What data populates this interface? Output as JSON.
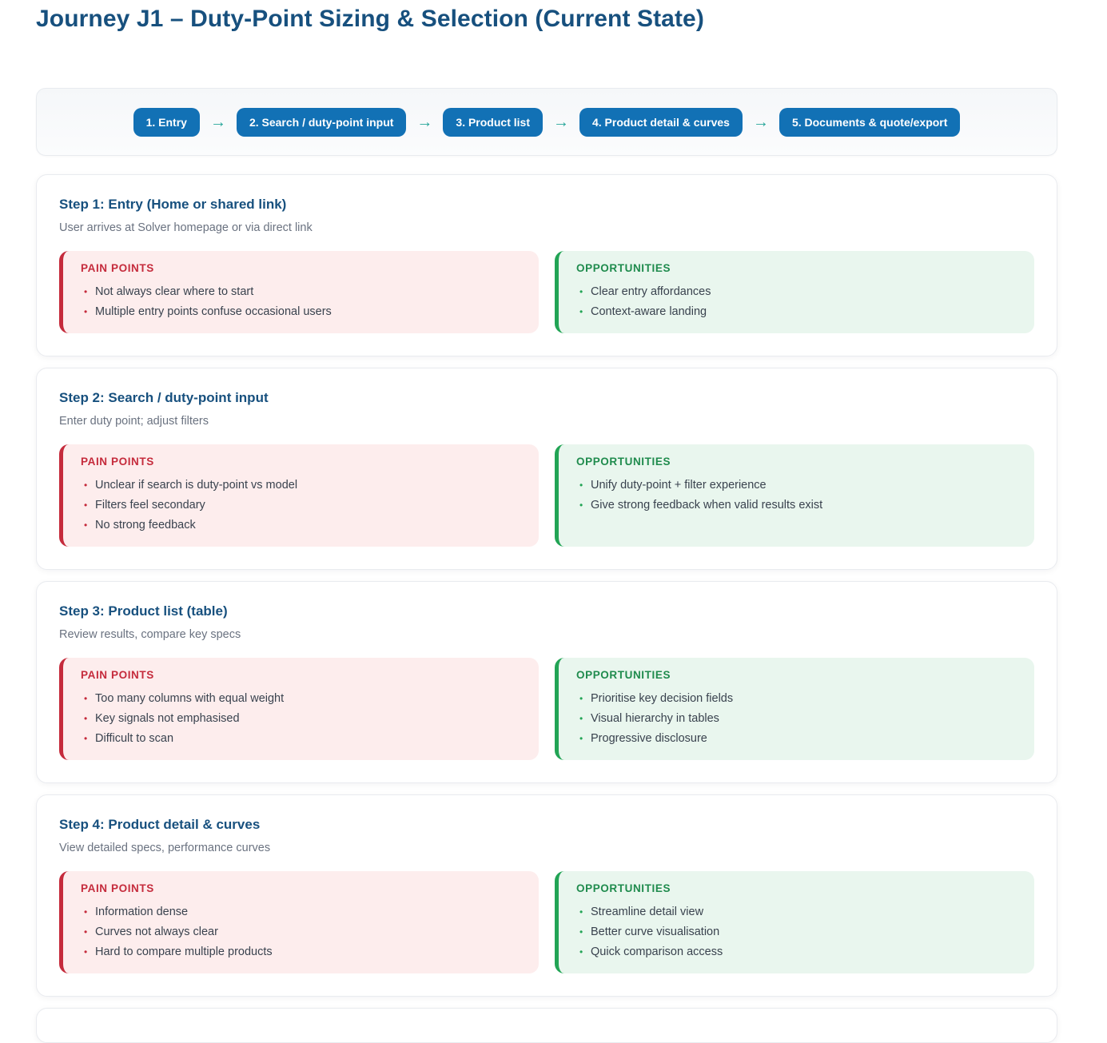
{
  "page": {
    "title": "Journey J1 – Duty-Point Sizing & Selection (Current State)"
  },
  "flow": {
    "arrow": "→",
    "steps": [
      "1. Entry",
      "2. Search / duty-point input",
      "3. Product list",
      "4. Product detail & curves",
      "5. Documents & quote/export"
    ]
  },
  "labels": {
    "pain": "PAIN POINTS",
    "opportunities": "OPPORTUNITIES"
  },
  "steps": [
    {
      "title": "Step 1: Entry (Home or shared link)",
      "subtitle": "User arrives at Solver homepage or via direct link",
      "pain": [
        "Not always clear where to start",
        "Multiple entry points confuse occasional users"
      ],
      "opportunities": [
        "Clear entry affordances",
        "Context-aware landing"
      ]
    },
    {
      "title": "Step 2: Search / duty-point input",
      "subtitle": "Enter duty point; adjust filters",
      "pain": [
        "Unclear if search is duty-point vs model",
        "Filters feel secondary",
        "No strong feedback"
      ],
      "opportunities": [
        "Unify duty-point + filter experience",
        "Give strong feedback when valid results exist"
      ]
    },
    {
      "title": "Step 3: Product list (table)",
      "subtitle": "Review results, compare key specs",
      "pain": [
        "Too many columns with equal weight",
        "Key signals not emphasised",
        "Difficult to scan"
      ],
      "opportunities": [
        "Prioritise key decision fields",
        "Visual hierarchy in tables",
        "Progressive disclosure"
      ]
    },
    {
      "title": "Step 4: Product detail & curves",
      "subtitle": "View detailed specs, performance curves",
      "pain": [
        "Information dense",
        "Curves not always clear",
        "Hard to compare multiple products"
      ],
      "opportunities": [
        "Streamline detail view",
        "Better curve visualisation",
        "Quick comparison access"
      ]
    }
  ],
  "colors": {
    "heading_navy": "#17507e",
    "pill_blue": "#1271b5",
    "arrow_teal": "#26a69a",
    "pain_red": "#c52b3c",
    "pain_bg": "#fdeded",
    "opportunity_green": "#1f8b4d",
    "opportunity_border_green": "#22a455",
    "opportunity_bg": "#e9f6ee",
    "subtitle_gray": "#6a7280",
    "body_text": "#39424e"
  }
}
